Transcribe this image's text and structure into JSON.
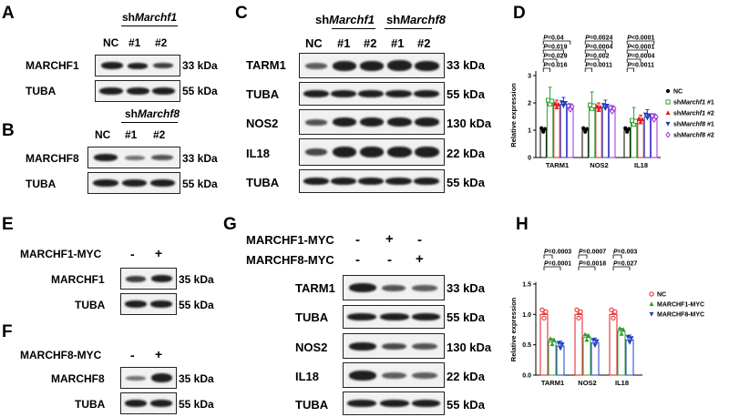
{
  "panels": {
    "A": {
      "letter": "A",
      "group": "sh",
      "group_gene": "Marchf1",
      "lanes": [
        "NC",
        "#1",
        "#2"
      ],
      "blots": [
        {
          "label": "MARCHF1",
          "size": "33 kDa"
        },
        {
          "label": "TUBA",
          "size": "55 kDa"
        }
      ]
    },
    "B": {
      "letter": "B",
      "group": "sh",
      "group_gene": "Marchf8",
      "lanes": [
        "NC",
        "#1",
        "#2"
      ],
      "blots": [
        {
          "label": "MARCHF8",
          "size": "33 kDa"
        },
        {
          "label": "TUBA",
          "size": "55 kDa"
        }
      ]
    },
    "C": {
      "letter": "C",
      "groups": [
        {
          "prefix": "sh",
          "gene": "Marchf1"
        },
        {
          "prefix": "sh",
          "gene": "Marchf8"
        }
      ],
      "lanes": [
        "NC",
        "#1",
        "#2",
        "#1",
        "#2"
      ],
      "blots": [
        {
          "label": "TARM1",
          "size": "33 kDa"
        },
        {
          "label": "TUBA",
          "size": "55 kDa"
        },
        {
          "label": "NOS2",
          "size": "130 kDa"
        },
        {
          "label": "IL18",
          "size": "22 kDa"
        },
        {
          "label": "TUBA",
          "size": "55 kDa"
        }
      ]
    },
    "D": {
      "letter": "D"
    },
    "E": {
      "letter": "E",
      "condition": "MARCHF1-MYC",
      "signs": [
        "-",
        "+"
      ],
      "blots": [
        {
          "label": "MARCHF1",
          "size": "35 kDa"
        },
        {
          "label": "TUBA",
          "size": "55 kDa"
        }
      ]
    },
    "F": {
      "letter": "F",
      "condition": "MARCHF8-MYC",
      "signs": [
        "-",
        "+"
      ],
      "blots": [
        {
          "label": "MARCHF8",
          "size": "35 kDa"
        },
        {
          "label": "TUBA",
          "size": "55 kDa"
        }
      ]
    },
    "G": {
      "letter": "G",
      "conditions": [
        {
          "label": "MARCHF1-MYC",
          "signs": [
            "-",
            "+",
            "-"
          ]
        },
        {
          "label": "MARCHF8-MYC",
          "signs": [
            "-",
            "-",
            "+"
          ]
        }
      ],
      "blots": [
        {
          "label": "TARM1",
          "size": "33 kDa"
        },
        {
          "label": "TUBA",
          "size": "55 kDa"
        },
        {
          "label": "NOS2",
          "size": "130 kDa"
        },
        {
          "label": "IL18",
          "size": "22 kDa"
        },
        {
          "label": "TUBA",
          "size": "55 kDa"
        }
      ]
    },
    "H": {
      "letter": "H"
    }
  },
  "chart_data": [
    {
      "panel": "D",
      "type": "bar",
      "ylabel": "Relative expression",
      "yticks": [
        0,
        1,
        2,
        3
      ],
      "ylim": [
        0,
        3.1
      ],
      "categories": [
        "TARM1",
        "NOS2",
        "IL18"
      ],
      "legend_position": "right",
      "series": [
        {
          "name": "NC",
          "color": "#000000",
          "values": [
            1.0,
            1.0,
            1.0
          ]
        },
        {
          "name": "shMarchf1 #1",
          "color": "#2ca02c",
          "values": [
            2.02,
            1.85,
            1.28
          ]
        },
        {
          "name": "shMarchf1 #2",
          "color": "#e41a1c",
          "values": [
            1.9,
            1.8,
            1.35
          ]
        },
        {
          "name": "shMarchf8 #1",
          "color": "#1f3fbf",
          "values": [
            1.95,
            1.85,
            1.5
          ]
        },
        {
          "name": "shMarchf8 #2",
          "color": "#9b30d9",
          "values": [
            1.82,
            1.75,
            1.45
          ]
        }
      ],
      "legend": [
        {
          "prefix": "NC",
          "gene": "",
          "suffix": ""
        },
        {
          "prefix": "sh",
          "gene": "Marchf1",
          "suffix": " #1"
        },
        {
          "prefix": "sh",
          "gene": "Marchf1",
          "suffix": " #2"
        },
        {
          "prefix": "sh",
          "gene": "Marchf8",
          "suffix": " #1"
        },
        {
          "prefix": "sh",
          "gene": "Marchf8",
          "suffix": " #2"
        }
      ],
      "pvalues": [
        [
          "P=0.04",
          "P=0.019",
          "P=0.029",
          "P=0.016"
        ],
        [
          "P=0.0024",
          "P=0.0004",
          "P=0.002",
          "P=0.0011"
        ],
        [
          "P<0.0001",
          "P<0.0001",
          "P=0.0004",
          "P=0.0011"
        ]
      ]
    },
    {
      "panel": "H",
      "type": "bar",
      "ylabel": "Relative expression",
      "yticks": [
        "0.0",
        "0.5",
        "1.0",
        "1.5"
      ],
      "ylim": [
        0,
        1.5
      ],
      "categories": [
        "TARM1",
        "NOS2",
        "IL18"
      ],
      "legend_position": "right",
      "series": [
        {
          "name": "NC",
          "color": "#e41a1c",
          "values": [
            1.0,
            1.0,
            1.0
          ]
        },
        {
          "name": "MARCHF1-MYC",
          "color": "#2ca02c",
          "values": [
            0.55,
            0.62,
            0.72
          ]
        },
        {
          "name": "MARCHF8-MYC",
          "color": "#1f3fbf",
          "values": [
            0.48,
            0.53,
            0.58
          ]
        }
      ],
      "pvalues": [
        [
          "P=0.0003",
          "P=0.0001"
        ],
        [
          "P=0.0007",
          "P=0.0018"
        ],
        [
          "P=0.003",
          "P=0.027"
        ]
      ]
    }
  ]
}
